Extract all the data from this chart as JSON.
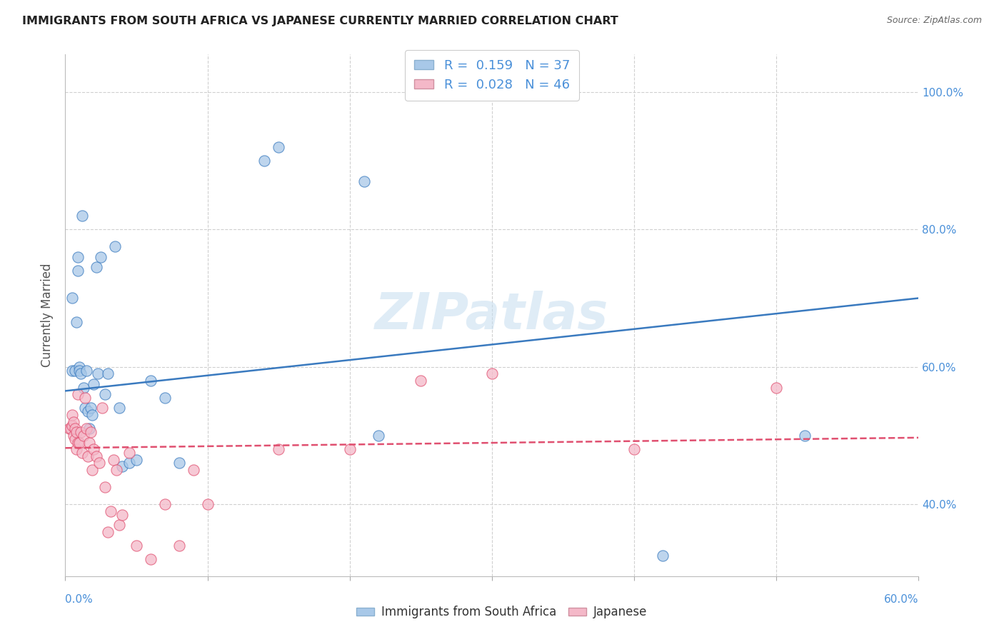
{
  "title": "IMMIGRANTS FROM SOUTH AFRICA VS JAPANESE CURRENTLY MARRIED CORRELATION CHART",
  "source": "Source: ZipAtlas.com",
  "ylabel": "Currently Married",
  "xlim": [
    0.0,
    0.6
  ],
  "ylim": [
    0.295,
    1.055
  ],
  "watermark": "ZIPatlas",
  "legend1_label": "R =  0.159   N = 37",
  "legend2_label": "R =  0.028   N = 46",
  "color_blue": "#a8c8e8",
  "color_pink": "#f4b8c8",
  "color_blue_line": "#3a7abf",
  "color_pink_line": "#e05070",
  "blue_scatter_x": [
    0.005,
    0.005,
    0.007,
    0.008,
    0.009,
    0.009,
    0.01,
    0.01,
    0.011,
    0.012,
    0.013,
    0.014,
    0.015,
    0.016,
    0.017,
    0.018,
    0.019,
    0.02,
    0.022,
    0.023,
    0.025,
    0.028,
    0.03,
    0.035,
    0.038,
    0.04,
    0.045,
    0.05,
    0.06,
    0.07,
    0.08,
    0.14,
    0.15,
    0.21,
    0.22,
    0.42,
    0.52
  ],
  "blue_scatter_y": [
    0.595,
    0.7,
    0.595,
    0.665,
    0.74,
    0.76,
    0.6,
    0.595,
    0.59,
    0.82,
    0.57,
    0.54,
    0.595,
    0.535,
    0.51,
    0.54,
    0.53,
    0.575,
    0.745,
    0.59,
    0.76,
    0.56,
    0.59,
    0.775,
    0.54,
    0.455,
    0.46,
    0.465,
    0.58,
    0.555,
    0.46,
    0.9,
    0.92,
    0.87,
    0.5,
    0.325,
    0.5
  ],
  "pink_scatter_x": [
    0.003,
    0.004,
    0.005,
    0.005,
    0.006,
    0.006,
    0.007,
    0.007,
    0.008,
    0.008,
    0.009,
    0.009,
    0.01,
    0.011,
    0.012,
    0.013,
    0.014,
    0.015,
    0.016,
    0.017,
    0.018,
    0.019,
    0.02,
    0.022,
    0.024,
    0.026,
    0.028,
    0.03,
    0.032,
    0.034,
    0.036,
    0.038,
    0.04,
    0.045,
    0.05,
    0.06,
    0.07,
    0.08,
    0.09,
    0.1,
    0.15,
    0.2,
    0.25,
    0.3,
    0.4,
    0.5
  ],
  "pink_scatter_y": [
    0.51,
    0.51,
    0.515,
    0.53,
    0.5,
    0.52,
    0.495,
    0.51,
    0.48,
    0.505,
    0.49,
    0.56,
    0.49,
    0.505,
    0.475,
    0.5,
    0.555,
    0.51,
    0.47,
    0.49,
    0.505,
    0.45,
    0.48,
    0.47,
    0.46,
    0.54,
    0.425,
    0.36,
    0.39,
    0.465,
    0.45,
    0.37,
    0.385,
    0.475,
    0.34,
    0.32,
    0.4,
    0.34,
    0.45,
    0.4,
    0.48,
    0.48,
    0.58,
    0.59,
    0.48,
    0.57
  ],
  "blue_line_x0": 0.0,
  "blue_line_x1": 0.6,
  "blue_line_y0": 0.565,
  "blue_line_y1": 0.7,
  "pink_line_x0": 0.0,
  "pink_line_x1": 0.6,
  "pink_line_y0": 0.482,
  "pink_line_y1": 0.497
}
